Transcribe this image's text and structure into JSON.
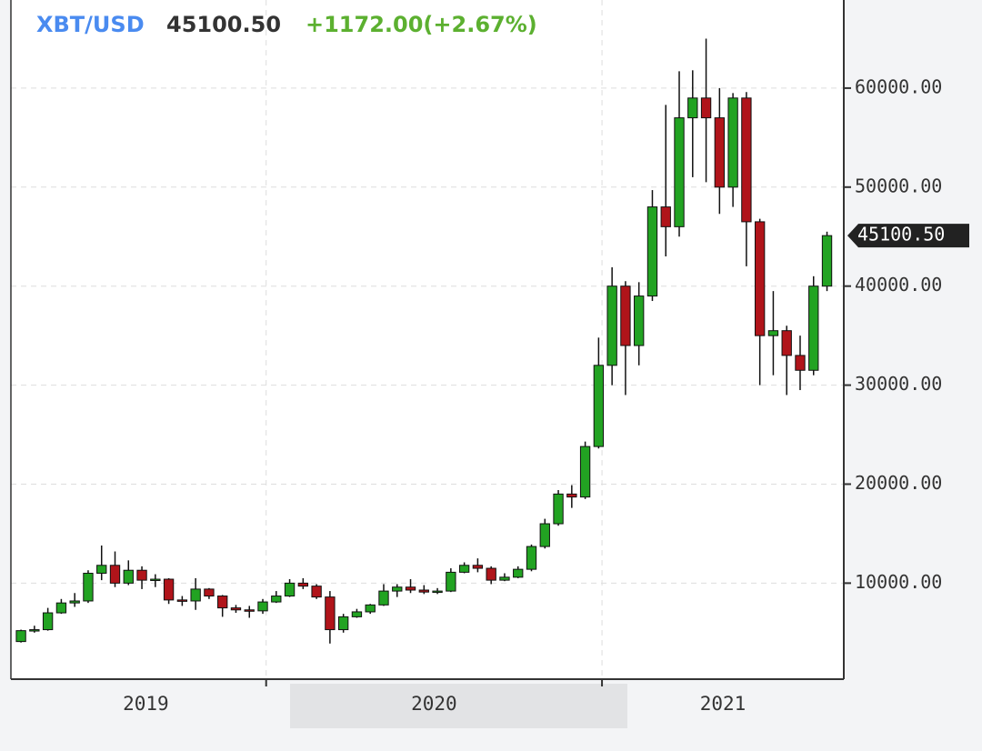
{
  "chart_data": {
    "type": "candlestick",
    "symbol": "XBT/USD",
    "last_price": {
      "value": 45100.5,
      "label": "45100.50"
    },
    "change_text": "+1172.00(+2.67%)",
    "up_color": "#22a322",
    "down_color": "#b0141a",
    "grid": true,
    "xlim": [
      2019.24,
      2021.72
    ],
    "xticks": [
      2020,
      2021
    ],
    "x_periods": [
      "2019",
      "2020",
      "2021"
    ],
    "ylim": [
      300,
      68900
    ],
    "yticks": [
      {
        "value": 10000,
        "label": "10000.00"
      },
      {
        "value": 20000,
        "label": "20000.00"
      },
      {
        "value": 30000,
        "label": "30000.00"
      },
      {
        "value": 40000,
        "label": "40000.00"
      },
      {
        "value": 50000,
        "label": "50000.00"
      },
      {
        "value": 60000,
        "label": "60000.00"
      }
    ],
    "x": [
      2019.27,
      2019.31,
      2019.35,
      2019.39,
      2019.43,
      2019.47,
      2019.51,
      2019.55,
      2019.59,
      2019.63,
      2019.67,
      2019.71,
      2019.75,
      2019.79,
      2019.83,
      2019.87,
      2019.91,
      2019.95,
      2019.99,
      2020.03,
      2020.07,
      2020.11,
      2020.15,
      2020.19,
      2020.23,
      2020.27,
      2020.31,
      2020.35,
      2020.39,
      2020.43,
      2020.47,
      2020.51,
      2020.55,
      2020.59,
      2020.63,
      2020.67,
      2020.71,
      2020.75,
      2020.79,
      2020.83,
      2020.87,
      2020.91,
      2020.95,
      2020.99,
      2021.03,
      2021.07,
      2021.11,
      2021.15,
      2021.19,
      2021.23,
      2021.27,
      2021.31,
      2021.35,
      2021.39,
      2021.43,
      2021.47,
      2021.51,
      2021.55,
      2021.59,
      2021.63,
      2021.67
    ],
    "open": [
      4100,
      5200,
      5300,
      7000,
      8000,
      8200,
      11000,
      11800,
      10000,
      11300,
      10300,
      10400,
      8300,
      8200,
      9400,
      8700,
      7500,
      7300,
      7200,
      8100,
      8700,
      10000,
      9700,
      8600,
      5300,
      6600,
      7100,
      7800,
      9200,
      9600,
      9300,
      9100,
      9200,
      11100,
      11800,
      11500,
      10300,
      10600,
      11400,
      13700,
      16000,
      19000,
      18700,
      23800,
      32000,
      40000,
      34000,
      39000,
      48000,
      46000,
      57000,
      59000,
      57000,
      50000,
      59000,
      46500,
      35000,
      35500,
      33000,
      31500,
      40000
    ],
    "high": [
      5300,
      5700,
      7500,
      8400,
      9000,
      11300,
      13800,
      13200,
      12300,
      11700,
      10900,
      10500,
      8700,
      10500,
      9500,
      8800,
      7800,
      7700,
      8400,
      9200,
      10400,
      10500,
      9900,
      9200,
      6900,
      7400,
      7900,
      9900,
      9900,
      10400,
      9800,
      9500,
      11500,
      12100,
      12500,
      11700,
      11000,
      11700,
      13900,
      16500,
      19400,
      19900,
      24300,
      34800,
      41900,
      40500,
      40400,
      49700,
      58300,
      61700,
      61800,
      65000,
      60000,
      59500,
      59600,
      46800,
      39500,
      36000,
      35000,
      41000,
      45500
    ],
    "low": [
      4000,
      5000,
      5200,
      6900,
      7600,
      8000,
      10300,
      9600,
      9800,
      9400,
      9600,
      7900,
      7700,
      7300,
      8400,
      6600,
      7000,
      6500,
      6900,
      8000,
      8600,
      9400,
      8400,
      3900,
      5000,
      6500,
      6900,
      7700,
      8600,
      9000,
      8900,
      8900,
      9100,
      11000,
      11100,
      9900,
      10200,
      10500,
      11200,
      13500,
      15800,
      17600,
      18500,
      23600,
      30000,
      29000,
      32000,
      38500,
      43000,
      45000,
      51000,
      50500,
      47300,
      48000,
      42000,
      30000,
      31000,
      29000,
      29500,
      31000,
      39500
    ],
    "close": [
      5200,
      5300,
      7000,
      8000,
      8200,
      11000,
      11800,
      10000,
      11300,
      10300,
      10400,
      8300,
      8200,
      9400,
      8700,
      7500,
      7300,
      7200,
      8100,
      8700,
      10000,
      9700,
      8600,
      5300,
      6600,
      7100,
      7800,
      9200,
      9600,
      9300,
      9100,
      9200,
      11100,
      11800,
      11500,
      10300,
      10600,
      11400,
      13700,
      16000,
      19000,
      18700,
      23800,
      32000,
      40000,
      34000,
      39000,
      48000,
      46000,
      57000,
      59000,
      57000,
      50000,
      59000,
      46500,
      35000,
      35500,
      33000,
      31500,
      40000,
      45100.5
    ]
  }
}
